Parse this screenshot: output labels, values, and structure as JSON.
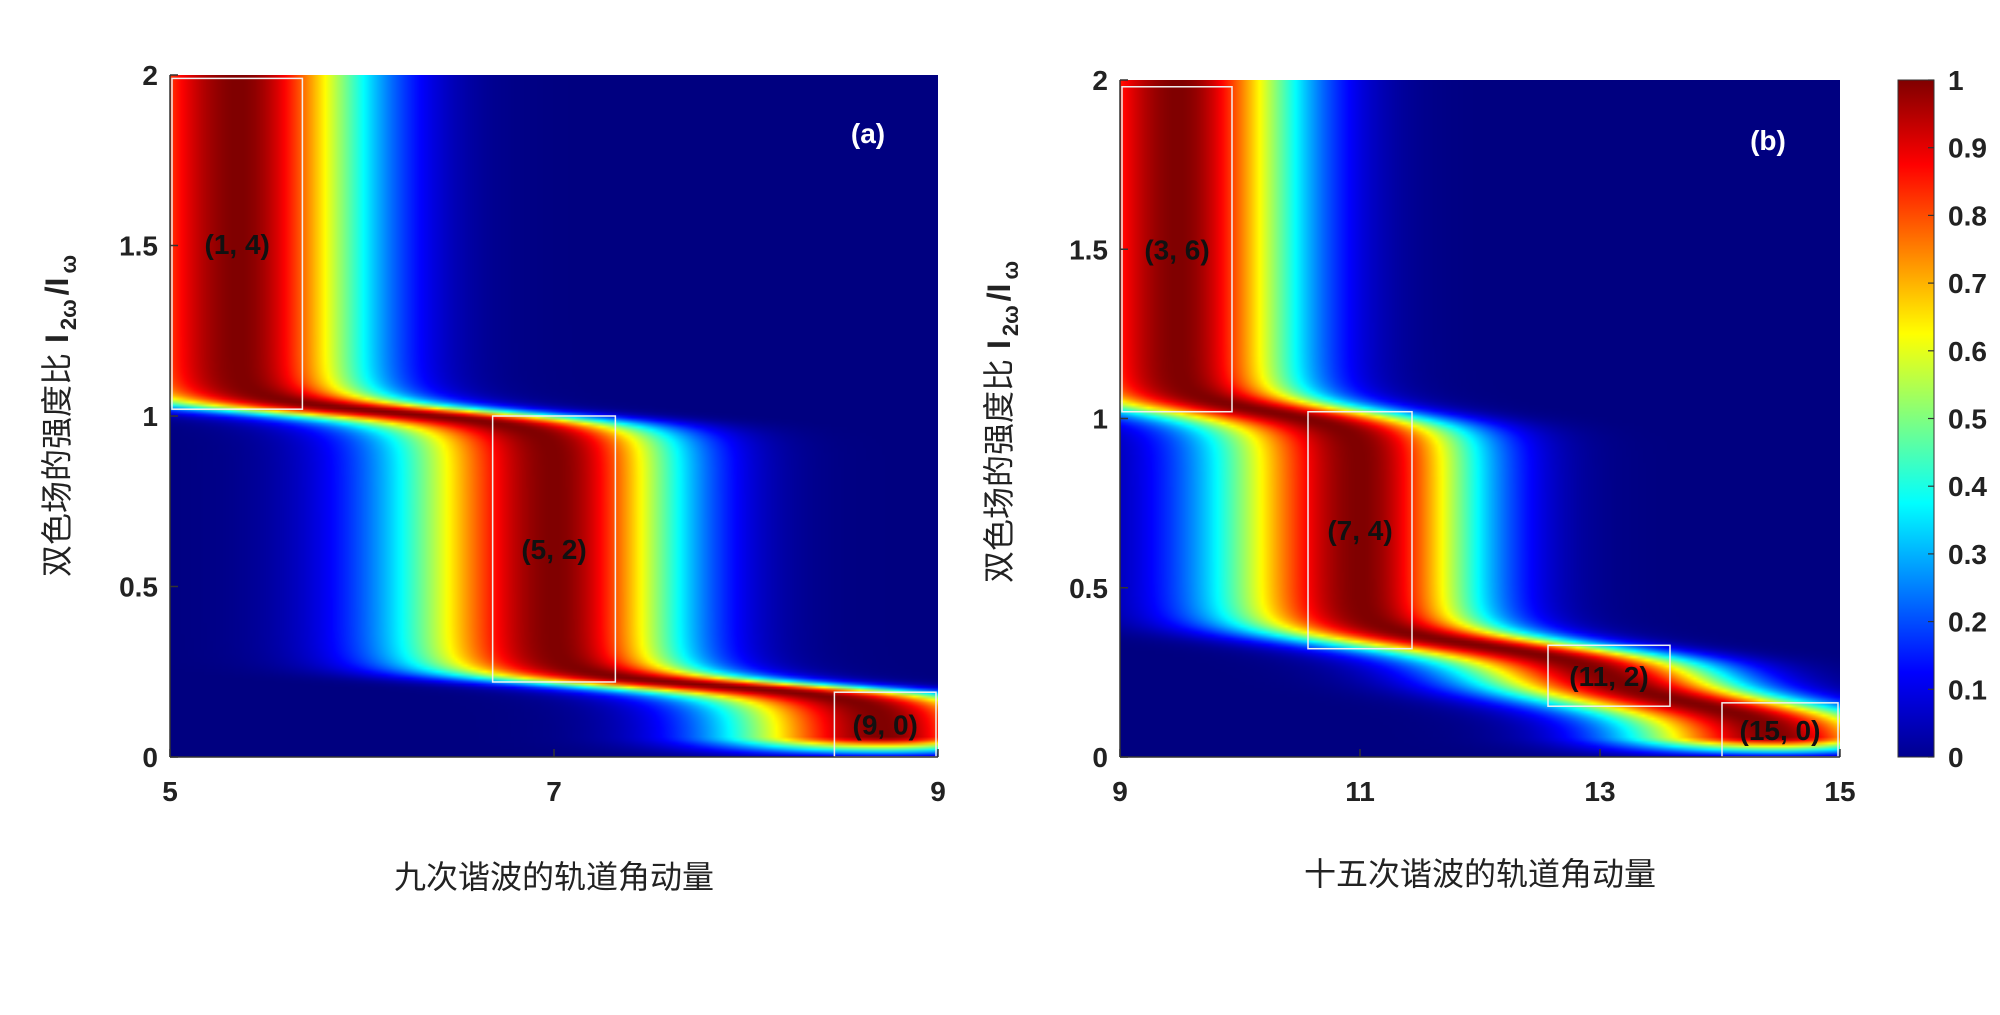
{
  "chart_data": [
    {
      "type": "heatmap",
      "panel_label": "(a)",
      "xlabel": "九次谐波的轨道角动量",
      "ylabel_text": "双色场的强度比",
      "ylabel_symbol": "I",
      "ylabel_sub1": "2ω",
      "ylabel_mid": "/I",
      "ylabel_sub2": "ω",
      "xlim": [
        5,
        9
      ],
      "ylim": [
        0,
        2
      ],
      "x_ticks": [
        "5",
        "7",
        "9"
      ],
      "x_tick_values": [
        5,
        7,
        9
      ],
      "y_ticks": [
        "0",
        "0.5",
        "1",
        "1.5",
        "2"
      ],
      "y_tick_values": [
        0,
        0.5,
        1,
        1.5,
        2
      ],
      "annotations": [
        {
          "label": "(1, 4)",
          "x0": 5.0,
          "x1": 5.7,
          "y0": 1.02,
          "y1": 1.99
        },
        {
          "label": "(5, 2)",
          "x0": 6.67,
          "x1": 7.33,
          "y0": 0.22,
          "y1": 1.0
        },
        {
          "label": "(9, 0)",
          "x0": 8.45,
          "x1": 9.0,
          "y0": 0.0,
          "y1": 0.19
        }
      ]
    },
    {
      "type": "heatmap",
      "panel_label": "(b)",
      "xlabel": "十五次谐波的轨道角动量",
      "ylabel_text": "双色场的强度比",
      "ylabel_symbol": "I",
      "ylabel_sub1": "2ω",
      "ylabel_mid": "/I",
      "ylabel_sub2": "ω",
      "xlim": [
        9,
        15
      ],
      "ylim": [
        0,
        2
      ],
      "x_ticks": [
        "9",
        "11",
        "13",
        "15"
      ],
      "x_tick_values": [
        9,
        11,
        13,
        15
      ],
      "y_ticks": [
        "0",
        "0.5",
        "1",
        "1.5",
        "2"
      ],
      "y_tick_values": [
        0,
        0.5,
        1,
        1.5,
        2
      ],
      "annotations": [
        {
          "label": "(3, 6)",
          "x0": 9.0,
          "x1": 9.95,
          "y0": 1.02,
          "y1": 1.98
        },
        {
          "label": "(7, 4)",
          "x0": 10.55,
          "x1": 11.45,
          "y0": 0.32,
          "y1": 1.02
        },
        {
          "label": "(11, 2)",
          "x0": 12.55,
          "x1": 13.6,
          "y0": 0.15,
          "y1": 0.33
        },
        {
          "label": "(15, 0)",
          "x0": 14.0,
          "x1": 15.0,
          "y0": 0.0,
          "y1": 0.16
        }
      ]
    }
  ],
  "colorbar": {
    "colormap": "jet",
    "range": [
      0,
      1
    ],
    "ticks": [
      "0",
      "0.1",
      "0.2",
      "0.3",
      "0.4",
      "0.5",
      "0.6",
      "0.7",
      "0.8",
      "0.9",
      "1"
    ],
    "tick_values": [
      0,
      0.1,
      0.2,
      0.3,
      0.4,
      0.5,
      0.6,
      0.7,
      0.8,
      0.9,
      1
    ]
  }
}
